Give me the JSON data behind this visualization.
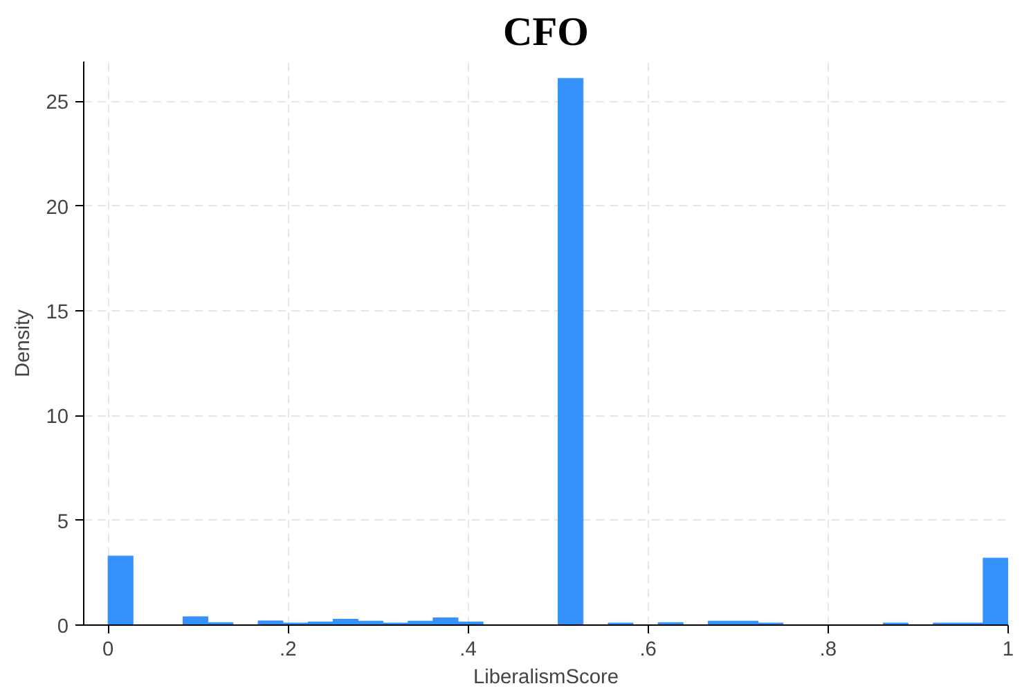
{
  "chart_data": {
    "type": "histogram",
    "title": "CFO",
    "xlabel": "LiberalismScore",
    "ylabel": "Density",
    "color": "#3592fd",
    "bins": [
      0,
      0.0278,
      0.0556,
      0.0833,
      0.1111,
      0.1389,
      0.1667,
      0.1944,
      0.2222,
      0.25,
      0.2778,
      0.3056,
      0.3333,
      0.3611,
      0.3889,
      0.4167,
      0.4444,
      0.4722,
      0.5,
      0.5278,
      0.5556,
      0.5833,
      0.6111,
      0.6389,
      0.6667,
      0.6944,
      0.7222,
      0.75,
      0.7778,
      0.8056,
      0.8333,
      0.8611,
      0.8889,
      0.9167,
      0.9444,
      0.9722,
      1
    ],
    "values": [
      3.3,
      null,
      0,
      0.4,
      0.12,
      0,
      0.2,
      0.1,
      0.15,
      0.28,
      0.19,
      0.1,
      0.19,
      0.35,
      0.15,
      null,
      null,
      0,
      26.1,
      0,
      0.1,
      0,
      0.12,
      null,
      0.19,
      0.19,
      0.1,
      0,
      null,
      0,
      0,
      0.1,
      0,
      0.1,
      0.1,
      3.2
    ],
    "xlim": [
      -0.027,
      1
    ],
    "ylim": [
      0,
      26.9
    ],
    "xticks": [
      0,
      {
        "value": 0.2,
        "label": ".2"
      },
      {
        "value": 0.4,
        "label": ".4"
      },
      {
        "value": 0.6,
        "label": ".6"
      },
      {
        "value": 0.8,
        "label": ".8"
      },
      1
    ],
    "yticks": [
      0,
      5,
      10,
      15,
      20,
      25
    ],
    "grid": true
  }
}
